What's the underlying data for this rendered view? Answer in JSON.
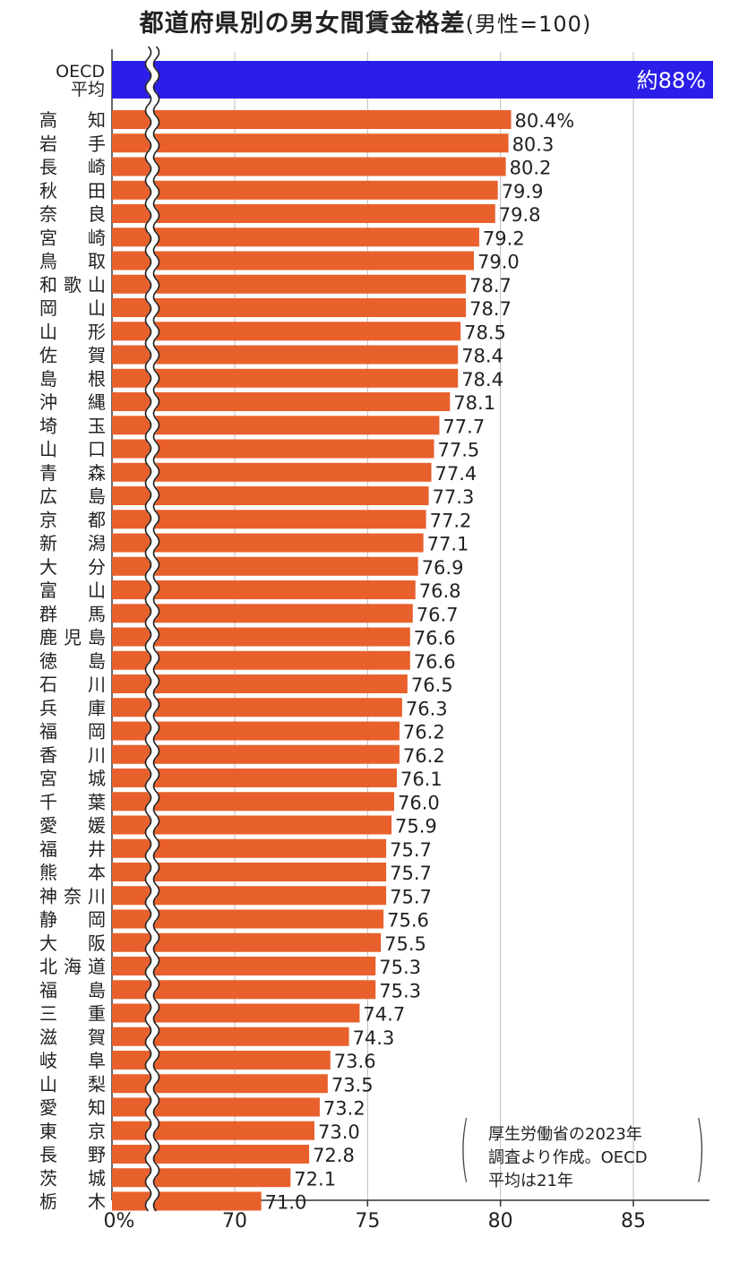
{
  "chart_data": {
    "type": "bar",
    "orientation": "horizontal",
    "title": "都道府県別の男女間賃金格差",
    "subtitle": "(男性=100)",
    "oecd": {
      "label_line1": "OECD",
      "label_line2": "平均",
      "value": 88,
      "value_label": "約88%"
    },
    "categories": [
      "高　知",
      "岩　手",
      "長　崎",
      "秋　田",
      "奈　良",
      "宮　崎",
      "鳥　取",
      "和歌山",
      "岡　山",
      "山　形",
      "佐　賀",
      "島　根",
      "沖　縄",
      "埼　玉",
      "山　口",
      "青　森",
      "広　島",
      "京　都",
      "新　潟",
      "大　分",
      "富　山",
      "群　馬",
      "鹿児島",
      "徳　島",
      "石　川",
      "兵　庫",
      "福　岡",
      "香　川",
      "宮　城",
      "千　葉",
      "愛　媛",
      "福　井",
      "熊　本",
      "神奈川",
      "静　岡",
      "大　阪",
      "北海道",
      "福　島",
      "三　重",
      "滋　賀",
      "岐　阜",
      "山　梨",
      "愛　知",
      "東　京",
      "長　野",
      "茨　城",
      "栃　木"
    ],
    "values": [
      80.4,
      80.3,
      80.2,
      79.9,
      79.8,
      79.2,
      79.0,
      78.7,
      78.7,
      78.5,
      78.4,
      78.4,
      78.1,
      77.7,
      77.5,
      77.4,
      77.3,
      77.2,
      77.1,
      76.9,
      76.8,
      76.7,
      76.6,
      76.6,
      76.5,
      76.3,
      76.2,
      76.2,
      76.1,
      76.0,
      75.9,
      75.7,
      75.7,
      75.7,
      75.6,
      75.5,
      75.3,
      75.3,
      74.7,
      74.3,
      73.6,
      73.5,
      73.2,
      73.0,
      72.8,
      72.1,
      71.0
    ],
    "value_labels": [
      "80.4%",
      "80.3",
      "80.2",
      "79.9",
      "79.8",
      "79.2",
      "79.0",
      "78.7",
      "78.7",
      "78.5",
      "78.4",
      "78.4",
      "78.1",
      "77.7",
      "77.5",
      "77.4",
      "77.3",
      "77.2",
      "77.1",
      "76.9",
      "76.8",
      "76.7",
      "76.6",
      "76.6",
      "76.5",
      "76.3",
      "76.2",
      "76.2",
      "76.1",
      "76.0",
      "75.9",
      "75.7",
      "75.7",
      "75.7",
      "75.6",
      "75.5",
      "75.3",
      "75.3",
      "74.7",
      "74.3",
      "73.6",
      "73.5",
      "73.2",
      "73.0",
      "72.8",
      "72.1",
      "71.0"
    ],
    "x_ticks": [
      70,
      75,
      80,
      85
    ],
    "x_tick_labels": [
      "70",
      "75",
      "80",
      "85"
    ],
    "x_zero_label": "0%",
    "axis_break": true,
    "xlim": [
      65.5,
      88
    ],
    "grid": true,
    "colors": {
      "bar": "#e8602c",
      "oecd_bar": "#2b1ee8",
      "oecd_text": "#ffffff",
      "grid": "#bbbbbb",
      "axis": "#333333"
    }
  },
  "source_note": {
    "lines": [
      "厚生労働省の2023年",
      "調査より作成。OECD",
      "平均は21年"
    ]
  }
}
